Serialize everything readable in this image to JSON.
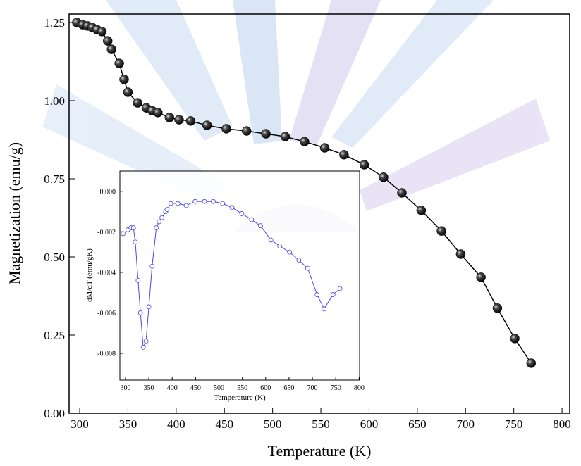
{
  "chart_data": [
    {
      "type": "line",
      "x_label": "Temperature (K)",
      "y_label": "Magnetization (emu/g)",
      "xlim": [
        289,
        808
      ],
      "ylim": [
        0,
        1.277
      ],
      "xticks": [
        300,
        350,
        400,
        450,
        500,
        550,
        600,
        650,
        700,
        750,
        800
      ],
      "yticks": [
        {
          "value": 0,
          "label": "0.00"
        },
        {
          "value": 0.25,
          "label": "0.25"
        },
        {
          "value": 0.5,
          "label": "0.50"
        },
        {
          "value": 0.75,
          "label": "0.75"
        },
        {
          "value": 1,
          "label": "1.00"
        },
        {
          "value": 1.25,
          "label": "1.25"
        }
      ],
      "series": [
        {
          "color": "#000000",
          "x": [
            297,
            303,
            308,
            313,
            318,
            323,
            329,
            333,
            341,
            346,
            350,
            360,
            369,
            375,
            381,
            393,
            403,
            415,
            432,
            452,
            473,
            493,
            513,
            533,
            554,
            574,
            595,
            615,
            634,
            654,
            675,
            695,
            716,
            733,
            751,
            768
          ],
          "values": [
            1.25,
            1.243,
            1.239,
            1.234,
            1.227,
            1.221,
            1.191,
            1.164,
            1.119,
            1.068,
            1.027,
            0.993,
            0.977,
            0.968,
            0.962,
            0.946,
            0.939,
            0.935,
            0.921,
            0.91,
            0.903,
            0.894,
            0.885,
            0.869,
            0.849,
            0.827,
            0.795,
            0.755,
            0.705,
            0.649,
            0.583,
            0.509,
            0.435,
            0.336,
            0.239,
            0.16
          ]
        }
      ]
    },
    {
      "type": "line",
      "x_label": "Temperature (K)",
      "y_label": "dM/dT (emu/gK)",
      "xlim": [
        288,
        801
      ],
      "ylim": [
        -0.00932,
        0.001
      ],
      "xticks": [
        300,
        350,
        400,
        450,
        500,
        550,
        600,
        650,
        700,
        750,
        800
      ],
      "yticks": [
        {
          "value": 0,
          "label": "0.000"
        },
        {
          "value": -0.002,
          "label": "-0.002"
        },
        {
          "value": -0.004,
          "label": "-0.004"
        },
        {
          "value": -0.006,
          "label": "-0.006"
        },
        {
          "value": -0.008,
          "label": "-0.008"
        }
      ],
      "series": [
        {
          "color": "#4a4ae8",
          "x": [
            295,
            305,
            312,
            317,
            321,
            327,
            332,
            338,
            344,
            350,
            357,
            366,
            372,
            378,
            386,
            389,
            397,
            412,
            430,
            449,
            469,
            488,
            508,
            528,
            549,
            570,
            589,
            611,
            630,
            651,
            671,
            690,
            710,
            725,
            744,
            759
          ],
          "values": [
            -0.00209,
            -0.0019,
            -0.0018,
            -0.0018,
            -0.0025,
            -0.0044,
            -0.006,
            -0.0077,
            -0.0074,
            -0.0057,
            -0.0037,
            -0.0018,
            -0.0015,
            -0.0013,
            -0.001,
            -0.0009,
            -0.0006,
            -0.0006,
            -0.0007,
            -0.0005,
            -0.0005,
            -0.0005,
            -0.0006,
            -0.0008,
            -0.0011,
            -0.0014,
            -0.0017,
            -0.0024,
            -0.0027,
            -0.003,
            -0.0034,
            -0.0038,
            -0.0051,
            -0.0058,
            -0.0051,
            -0.0048
          ]
        }
      ]
    }
  ]
}
